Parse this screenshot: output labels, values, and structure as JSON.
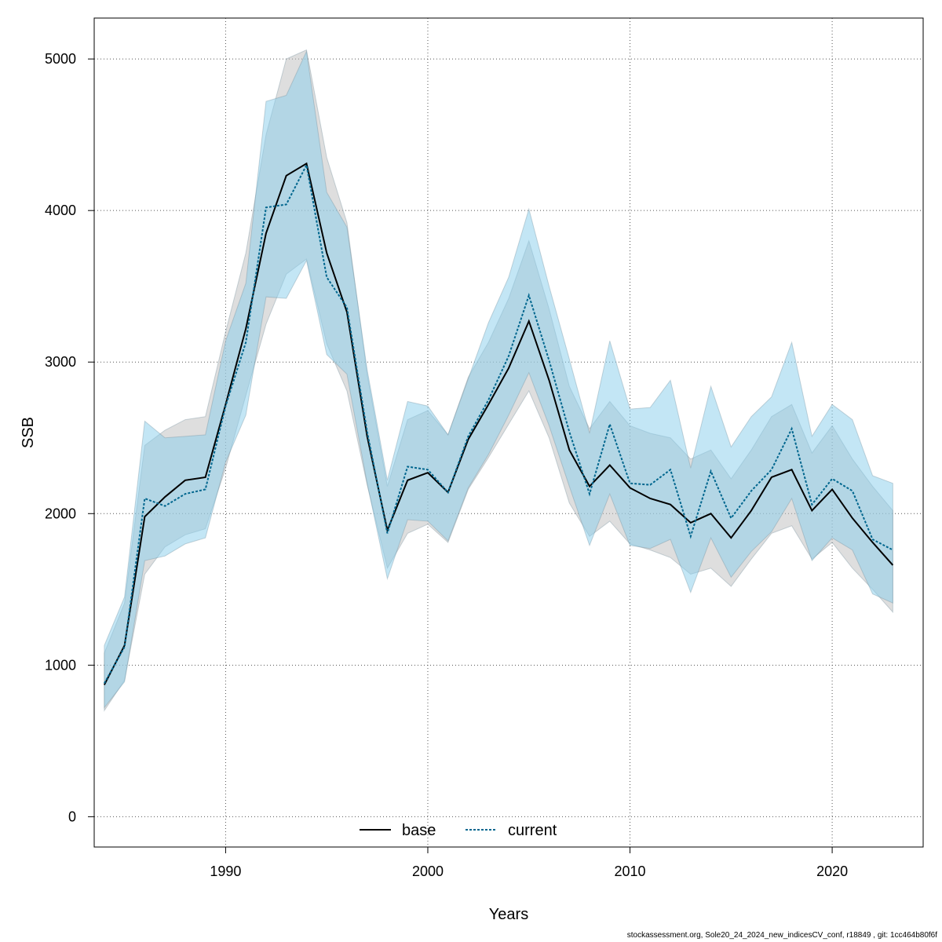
{
  "chart_data": {
    "type": "line",
    "xlabel": "Years",
    "ylabel": "SSB",
    "xlim": [
      1983.5,
      2024.5
    ],
    "ylim": [
      -200,
      5270
    ],
    "x_ticks": [
      1990,
      2000,
      2010,
      2020
    ],
    "y_ticks": [
      0,
      1000,
      2000,
      3000,
      4000,
      5000
    ],
    "grid": true,
    "legend_position": "bottom",
    "x": [
      1984,
      1985,
      1986,
      1987,
      1988,
      1989,
      1990,
      1991,
      1992,
      1993,
      1994,
      1995,
      1996,
      1997,
      1998,
      1999,
      2000,
      2001,
      2002,
      2003,
      2004,
      2005,
      2006,
      2007,
      2008,
      2009,
      2010,
      2011,
      2012,
      2013,
      2014,
      2015,
      2016,
      2017,
      2018,
      2019,
      2020,
      2021,
      2022,
      2023
    ],
    "series": [
      {
        "name": "base",
        "line_style": "solid",
        "line_color": "#000000",
        "band_color": "#bebebe",
        "values": [
          870,
          1130,
          1980,
          2110,
          2220,
          2240,
          2720,
          3220,
          3850,
          4230,
          4310,
          3720,
          3330,
          2510,
          1890,
          2220,
          2270,
          2140,
          2490,
          2720,
          2960,
          3270,
          2880,
          2420,
          2180,
          2320,
          2170,
          2100,
          2060,
          1940,
          2000,
          1840,
          2020,
          2240,
          2290,
          2020,
          2160,
          1970,
          1810,
          1660
        ],
        "lower": [
          700,
          900,
          1600,
          1780,
          1860,
          1900,
          2300,
          2780,
          3250,
          3580,
          3680,
          3120,
          2810,
          2190,
          1640,
          1870,
          1930,
          1810,
          2160,
          2370,
          2590,
          2810,
          2500,
          2070,
          1850,
          1950,
          1800,
          1760,
          1710,
          1600,
          1640,
          1520,
          1700,
          1870,
          1920,
          1700,
          1810,
          1640,
          1500,
          1350
        ],
        "upper": [
          1080,
          1410,
          2450,
          2550,
          2620,
          2640,
          3200,
          3720,
          4500,
          5000,
          5060,
          4350,
          3920,
          2920,
          2180,
          2620,
          2680,
          2520,
          2900,
          3130,
          3420,
          3800,
          3350,
          2840,
          2560,
          2740,
          2580,
          2530,
          2500,
          2360,
          2420,
          2230,
          2420,
          2640,
          2720,
          2400,
          2580,
          2360,
          2180,
          2020
        ]
      },
      {
        "name": "current",
        "line_style": "dotted",
        "line_color": "#00668e",
        "band_color": "#87ceeb",
        "values": [
          880,
          1120,
          2100,
          2050,
          2130,
          2160,
          2710,
          3130,
          4020,
          4040,
          4300,
          3560,
          3360,
          2540,
          1870,
          2310,
          2290,
          2140,
          2510,
          2750,
          3040,
          3440,
          3010,
          2540,
          2130,
          2590,
          2200,
          2190,
          2290,
          1850,
          2280,
          1970,
          2150,
          2290,
          2560,
          2060,
          2230,
          2150,
          1830,
          1760
        ],
        "lower": [
          720,
          890,
          1690,
          1720,
          1800,
          1840,
          2340,
          2650,
          3430,
          3420,
          3670,
          3050,
          2920,
          2200,
          1570,
          1960,
          1950,
          1820,
          2170,
          2390,
          2650,
          2930,
          2580,
          2180,
          1790,
          2130,
          1790,
          1770,
          1830,
          1480,
          1840,
          1580,
          1750,
          1880,
          2100,
          1690,
          1840,
          1760,
          1470,
          1410
        ],
        "upper": [
          1130,
          1450,
          2610,
          2500,
          2510,
          2520,
          3140,
          3520,
          4720,
          4760,
          5050,
          4120,
          3890,
          2950,
          2220,
          2740,
          2710,
          2520,
          2890,
          3260,
          3560,
          4010,
          3500,
          3020,
          2530,
          3140,
          2690,
          2700,
          2880,
          2300,
          2840,
          2440,
          2640,
          2770,
          3130,
          2510,
          2720,
          2620,
          2250,
          2200
        ]
      }
    ]
  },
  "footer_text": "stockassessment.org, Sole20_24_2024_new_indicesCV_conf, r18849 , git: 1cc464b80f6f"
}
